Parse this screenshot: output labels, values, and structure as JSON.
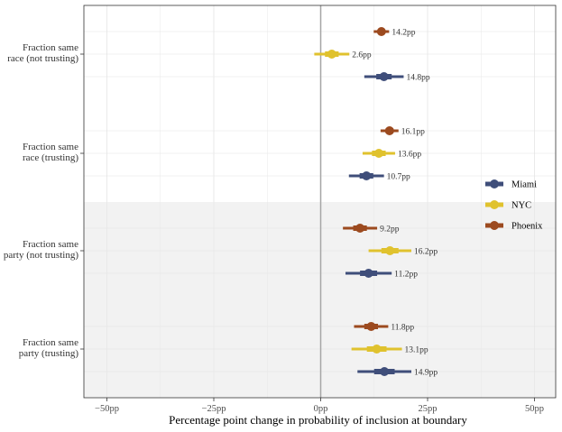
{
  "chart_data": {
    "type": "forest",
    "title": "",
    "xlabel": "Percentage point change in probability of inclusion at boundary",
    "ylabel": "",
    "xlim": [
      -50,
      50
    ],
    "x_ticks": [
      -50,
      -25,
      0,
      25,
      50
    ],
    "x_tick_labels": [
      "−50pp",
      "−25pp",
      "0pp",
      "25pp",
      "50pp"
    ],
    "reference_line": 0,
    "groups": [
      {
        "label_lines": [
          "Fraction same",
          "race (not trusting)"
        ],
        "shaded": false
      },
      {
        "label_lines": [
          "Fraction same",
          "race (trusting)"
        ],
        "shaded": false
      },
      {
        "label_lines": [
          "Fraction same",
          "party (not trusting)"
        ],
        "shaded": true
      },
      {
        "label_lines": [
          "Fraction same",
          "party (trusting)"
        ],
        "shaded": true
      }
    ],
    "series": [
      {
        "name": "Phoenix",
        "color": "#9C4A1F",
        "points": [
          {
            "estimate": 14.2,
            "label": "14.2pp",
            "ci_outer": [
              12.4,
              16.0
            ],
            "ci_inner": [
              13.4,
              15.0
            ]
          },
          {
            "estimate": 16.1,
            "label": "16.1pp",
            "ci_outer": [
              14.0,
              18.2
            ],
            "ci_inner": [
              15.2,
              17.0
            ]
          },
          {
            "estimate": 9.2,
            "label": "9.2pp",
            "ci_outer": [
              5.2,
              13.2
            ],
            "ci_inner": [
              7.6,
              10.8
            ]
          },
          {
            "estimate": 11.8,
            "label": "11.8pp",
            "ci_outer": [
              7.8,
              15.8
            ],
            "ci_inner": [
              10.2,
              13.4
            ]
          }
        ]
      },
      {
        "name": "NYC",
        "color": "#E0C22E",
        "points": [
          {
            "estimate": 2.6,
            "label": "2.6pp",
            "ci_outer": [
              -1.5,
              6.7
            ],
            "ci_inner": [
              1.0,
              4.2
            ]
          },
          {
            "estimate": 13.6,
            "label": "13.6pp",
            "ci_outer": [
              9.8,
              17.4
            ],
            "ci_inner": [
              12.0,
              15.2
            ]
          },
          {
            "estimate": 16.2,
            "label": "16.2pp",
            "ci_outer": [
              11.2,
              21.2
            ],
            "ci_inner": [
              14.2,
              18.2
            ]
          },
          {
            "estimate": 13.1,
            "label": "13.1pp",
            "ci_outer": [
              7.2,
              19.0
            ],
            "ci_inner": [
              10.8,
              15.4
            ]
          }
        ]
      },
      {
        "name": "Miami",
        "color": "#3F4E7A",
        "points": [
          {
            "estimate": 14.8,
            "label": "14.8pp",
            "ci_outer": [
              10.2,
              19.4
            ],
            "ci_inner": [
              13.0,
              16.6
            ]
          },
          {
            "estimate": 10.7,
            "label": "10.7pp",
            "ci_outer": [
              6.6,
              14.8
            ],
            "ci_inner": [
              9.1,
              12.3
            ]
          },
          {
            "estimate": 11.2,
            "label": "11.2pp",
            "ci_outer": [
              5.8,
              16.6
            ],
            "ci_inner": [
              9.2,
              13.2
            ]
          },
          {
            "estimate": 14.9,
            "label": "14.9pp",
            "ci_outer": [
              8.6,
              21.2
            ],
            "ci_inner": [
              12.5,
              17.3
            ]
          }
        ]
      }
    ],
    "legend": {
      "position": "right",
      "entries": [
        "Miami",
        "NYC",
        "Phoenix"
      ]
    }
  }
}
